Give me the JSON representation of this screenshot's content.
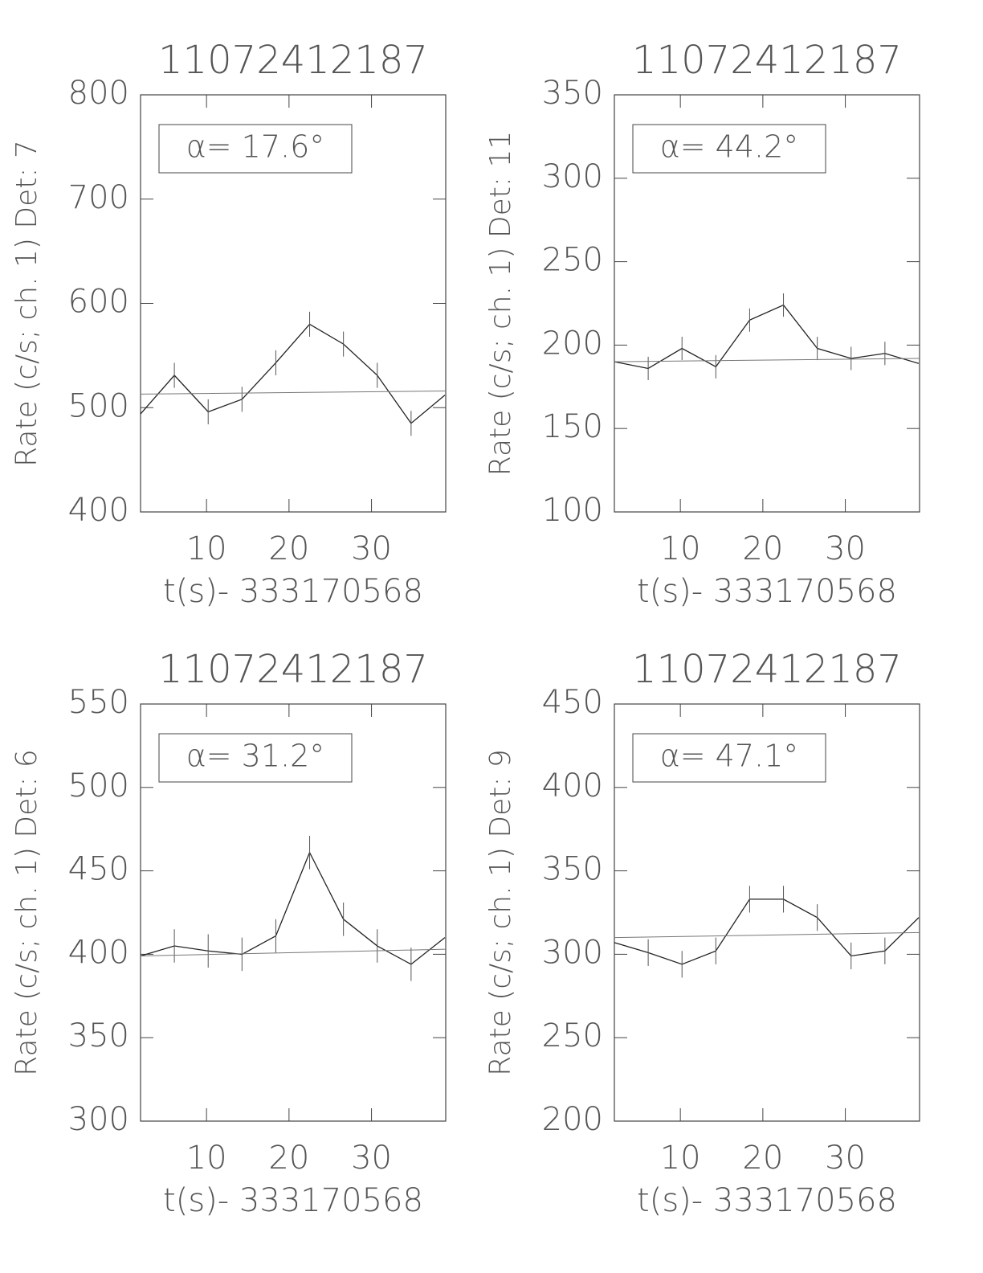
{
  "chart_data": [
    {
      "type": "line",
      "title": "11072412187",
      "y_label": "Rate (c/s; ch. 1) Det: 7",
      "x_label": "t(s)- 333170568",
      "annotation": "α= 17.6°",
      "x": [
        2.0,
        6.1,
        10.2,
        14.3,
        18.4,
        22.5,
        26.6,
        30.7,
        34.8,
        38.9
      ],
      "values": [
        494,
        531,
        496,
        508,
        543,
        580,
        561,
        531,
        485,
        512
      ],
      "errors": [
        null,
        12,
        12,
        12,
        12,
        12,
        12,
        12,
        12,
        null
      ],
      "fit_values": [
        513,
        516
      ],
      "xlim": [
        2,
        39
      ],
      "xticks": [
        10,
        20,
        30
      ],
      "ylim": [
        400,
        800
      ],
      "yticks": [
        400,
        500,
        600,
        700,
        800
      ]
    },
    {
      "type": "line",
      "title": "11072412187",
      "y_label": "Rate (c/s; ch. 1) Det: 11",
      "x_label": "t(s)- 333170568",
      "annotation": "α= 44.2°",
      "x": [
        2.0,
        6.1,
        10.2,
        14.3,
        18.4,
        22.5,
        26.6,
        30.7,
        34.8,
        38.9
      ],
      "values": [
        190,
        186,
        198,
        187,
        215,
        224,
        198,
        192,
        195,
        189
      ],
      "errors": [
        null,
        7,
        7,
        7,
        7,
        7,
        7,
        7,
        7,
        null
      ],
      "fit_values": [
        190,
        192
      ],
      "xlim": [
        2,
        39
      ],
      "xticks": [
        10,
        20,
        30
      ],
      "ylim": [
        100,
        350
      ],
      "yticks": [
        100,
        150,
        200,
        250,
        300,
        350
      ]
    },
    {
      "type": "line",
      "title": "11072412187",
      "y_label": "Rate (c/s; ch. 1) Det: 6",
      "x_label": "t(s)- 333170568",
      "annotation": "α= 31.2°",
      "x": [
        2.0,
        6.1,
        10.2,
        14.3,
        18.4,
        22.5,
        26.6,
        30.7,
        34.8,
        38.9
      ],
      "values": [
        399,
        405,
        402,
        400,
        411,
        461,
        421,
        405,
        394,
        410
      ],
      "errors": [
        null,
        10,
        10,
        10,
        10,
        10,
        10,
        10,
        10,
        null
      ],
      "fit_values": [
        399,
        403
      ],
      "xlim": [
        2,
        39
      ],
      "xticks": [
        10,
        20,
        30
      ],
      "ylim": [
        300,
        550
      ],
      "yticks": [
        300,
        350,
        400,
        450,
        500,
        550
      ]
    },
    {
      "type": "line",
      "title": "11072412187",
      "y_label": "Rate (c/s; ch. 1) Det: 9",
      "x_label": "t(s)- 333170568",
      "annotation": "α= 47.1°",
      "x": [
        2.0,
        6.1,
        10.2,
        14.3,
        18.4,
        22.5,
        26.6,
        30.7,
        34.8,
        38.9
      ],
      "values": [
        307,
        301,
        294,
        302,
        333,
        333,
        322,
        299,
        302,
        322
      ],
      "errors": [
        null,
        8,
        8,
        8,
        8,
        8,
        8,
        8,
        8,
        null
      ],
      "fit_values": [
        310,
        313
      ],
      "xlim": [
        2,
        39
      ],
      "xticks": [
        10,
        20,
        30
      ],
      "ylim": [
        200,
        450
      ],
      "yticks": [
        200,
        250,
        300,
        350,
        400,
        450
      ]
    }
  ]
}
